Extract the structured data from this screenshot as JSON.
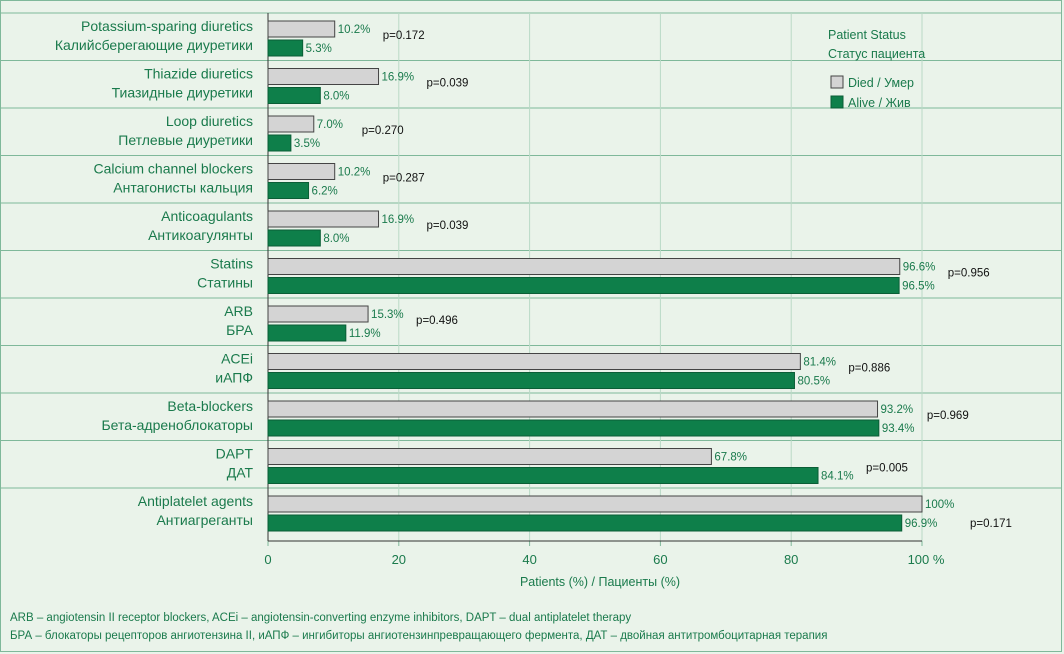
{
  "chart_data": {
    "type": "bar",
    "orientation": "horizontal",
    "xlabel": "Patients (%) / Пациенты (%)",
    "xlim": [
      0,
      100
    ],
    "x_ticks": [
      "0",
      "20",
      "40",
      "60",
      "80",
      "100 %"
    ],
    "legend": {
      "title_en": "Patient Status",
      "title_ru": "Статус пациента",
      "placement": "top-right"
    },
    "series": [
      {
        "name": "Died / Умер",
        "color": "#d4d4d4"
      },
      {
        "name": "Alive / Жив",
        "color": "#0e7f4a"
      }
    ],
    "categories": [
      {
        "en": "Potassium-sparing diuretics",
        "ru": "Калийсберегающие диуретики",
        "died": 10.2,
        "died_label": "10.2%",
        "alive": 5.3,
        "alive_label": "5.3%",
        "p": "p=0.172"
      },
      {
        "en": "Thiazide diuretics",
        "ru": "Тиазидные диуретики",
        "died": 16.9,
        "died_label": "16.9%",
        "alive": 8.0,
        "alive_label": "8.0%",
        "p": "p=0.039"
      },
      {
        "en": "Loop diuretics",
        "ru": "Петлевые диуретики",
        "died": 7.0,
        "died_label": "7.0%",
        "alive": 3.5,
        "alive_label": "3.5%",
        "p": "p=0.270"
      },
      {
        "en": "Calcium channel blockers",
        "ru": "Антагонисты кальция",
        "died": 10.2,
        "died_label": "10.2%",
        "alive": 6.2,
        "alive_label": "6.2%",
        "p": "p=0.287"
      },
      {
        "en": "Anticoagulants",
        "ru": "Антикоагулянты",
        "died": 16.9,
        "died_label": "16.9%",
        "alive": 8.0,
        "alive_label": "8.0%",
        "p": "p=0.039"
      },
      {
        "en": "Statins",
        "ru": "Статины",
        "died": 96.6,
        "died_label": "96.6%",
        "alive": 96.5,
        "alive_label": "96.5%",
        "p": "p=0.956"
      },
      {
        "en": "ARB",
        "ru": "БРА",
        "died": 15.3,
        "died_label": "15.3%",
        "alive": 11.9,
        "alive_label": "11.9%",
        "p": "p=0.496"
      },
      {
        "en": "ACEi",
        "ru": "иАПФ",
        "died": 81.4,
        "died_label": "81.4%",
        "alive": 80.5,
        "alive_label": "80.5%",
        "p": "p=0.886"
      },
      {
        "en": "Beta-blockers",
        "ru": "Бета-адреноблокаторы",
        "died": 93.2,
        "died_label": "93.2%",
        "alive": 93.4,
        "alive_label": "93.4%",
        "p": "p=0.969"
      },
      {
        "en": "DAPT",
        "ru": "ДАТ",
        "died": 67.8,
        "died_label": "67.8%",
        "alive": 84.1,
        "alive_label": "84.1%",
        "p": "p=0.005"
      },
      {
        "en": "Antiplatelet agents",
        "ru": "Антиагреганты",
        "died": 100,
        "died_label": "100%",
        "alive": 96.9,
        "alive_label": "96.9%",
        "p": "p=0.171"
      }
    ]
  },
  "footnotes": {
    "line1": "ARB – angiotensin II receptor blockers, ACEi – angiotensin-converting enzyme inhibitors, DAPT – dual antiplatelet therapy",
    "line2": "БРА – блокаторы рецепторов ангиотензина II, иАПФ – ингибиторы ангиотензинпревращающего фермента, ДАТ – двойная антитромбоцитарная терапия"
  }
}
